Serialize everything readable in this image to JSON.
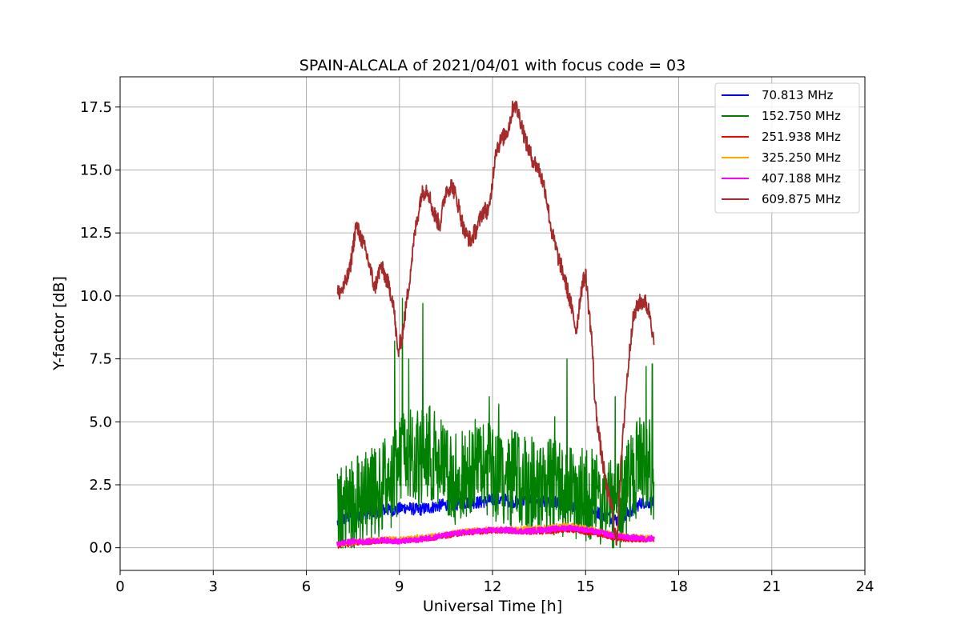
{
  "chart_data": {
    "type": "line",
    "title": "SPAIN-ALCALA of 2021/04/01 with focus code = 03",
    "xlabel": "Universal Time [h]",
    "ylabel": "Y-factor [dB]",
    "xlim": [
      0,
      24
    ],
    "ylim": [
      -0.9,
      18.7
    ],
    "xticks": [
      0,
      3,
      6,
      9,
      12,
      15,
      18,
      21,
      24
    ],
    "xtick_labels": [
      "0",
      "3",
      "6",
      "9",
      "12",
      "15",
      "18",
      "21",
      "24"
    ],
    "yticks": [
      0,
      2.5,
      5,
      7.5,
      10,
      12.5,
      15,
      17.5
    ],
    "ytick_labels": [
      "0.0",
      "2.5",
      "5.0",
      "7.5",
      "10.0",
      "12.5",
      "15.0",
      "17.5"
    ],
    "grid": true,
    "legend_position": "top-right",
    "series": [
      {
        "name": " 70.813 MHz",
        "color": "#0000ff",
        "x": [
          7.0,
          7.3,
          7.6,
          8.0,
          8.4,
          8.8,
          9.2,
          9.6,
          10.0,
          10.4,
          10.8,
          11.2,
          11.6,
          12.0,
          12.4,
          12.8,
          13.2,
          13.6,
          14.0,
          14.4,
          14.8,
          15.2,
          15.6,
          16.0,
          16.4,
          16.8,
          17.2
        ],
        "y": [
          1.0,
          1.2,
          1.3,
          1.4,
          1.5,
          1.5,
          1.6,
          1.5,
          1.6,
          1.7,
          1.7,
          1.8,
          1.8,
          1.9,
          1.9,
          1.8,
          1.9,
          1.8,
          1.8,
          1.7,
          1.6,
          1.5,
          1.3,
          1.1,
          1.4,
          1.8,
          1.8
        ]
      },
      {
        "name": "152.750 MHz",
        "color": "#008000",
        "x": [
          7.0,
          7.3,
          7.6,
          8.0,
          8.4,
          8.8,
          9.2,
          9.6,
          10.0,
          10.4,
          10.8,
          11.2,
          11.6,
          12.0,
          12.4,
          12.8,
          13.2,
          13.6,
          14.0,
          14.4,
          14.8,
          15.2,
          15.6,
          16.0,
          16.4,
          16.8,
          17.2
        ],
        "y": [
          1.2,
          1.5,
          1.8,
          2.0,
          2.3,
          2.8,
          4.0,
          3.5,
          3.8,
          3.2,
          2.8,
          3.0,
          3.3,
          3.0,
          2.8,
          2.7,
          2.5,
          2.6,
          2.4,
          2.3,
          2.2,
          2.0,
          1.8,
          1.5,
          2.5,
          3.5,
          3.0
        ],
        "peaks": [
          [
            7.05,
            2.7
          ],
          [
            8.85,
            8.2
          ],
          [
            9.1,
            9.9
          ],
          [
            9.3,
            7.5
          ],
          [
            9.75,
            9.7
          ],
          [
            11.9,
            6.0
          ],
          [
            12.2,
            5.7
          ],
          [
            14.0,
            5.2
          ],
          [
            14.4,
            7.5
          ],
          [
            15.95,
            6.0
          ],
          [
            16.95,
            7.2
          ],
          [
            17.15,
            7.3
          ]
        ]
      },
      {
        "name": "251.938 MHz",
        "color": "#ff0000",
        "x": [
          7.0,
          7.5,
          8.0,
          8.5,
          9.0,
          9.5,
          10.0,
          10.5,
          11.0,
          11.5,
          12.0,
          12.5,
          13.0,
          13.5,
          14.0,
          14.5,
          15.0,
          15.5,
          16.0,
          16.5,
          17.0,
          17.2
        ],
        "y": [
          0.05,
          0.15,
          0.2,
          0.25,
          0.25,
          0.3,
          0.35,
          0.45,
          0.55,
          0.6,
          0.65,
          0.65,
          0.6,
          0.6,
          0.65,
          0.7,
          0.6,
          0.5,
          0.35,
          0.3,
          0.3,
          0.3
        ]
      },
      {
        "name": "325.250 MHz",
        "color": "#ffa500",
        "x": [
          7.0,
          7.5,
          8.0,
          8.5,
          9.0,
          9.5,
          10.0,
          10.5,
          11.0,
          11.5,
          12.0,
          12.5,
          13.0,
          13.5,
          14.0,
          14.5,
          15.0,
          15.5,
          16.0,
          16.5,
          17.0,
          17.2
        ],
        "y": [
          0.1,
          0.2,
          0.3,
          0.35,
          0.35,
          0.4,
          0.45,
          0.55,
          0.65,
          0.7,
          0.75,
          0.75,
          0.75,
          0.8,
          0.85,
          0.9,
          0.8,
          0.65,
          0.5,
          0.45,
          0.4,
          0.4
        ]
      },
      {
        "name": "407.188 MHz",
        "color": "#ff00ff",
        "x": [
          7.0,
          7.5,
          8.0,
          8.5,
          9.0,
          9.5,
          10.0,
          10.5,
          11.0,
          11.5,
          12.0,
          12.5,
          13.0,
          13.5,
          14.0,
          14.5,
          15.0,
          15.5,
          16.0,
          16.5,
          17.0,
          17.2
        ],
        "y": [
          0.15,
          0.25,
          0.25,
          0.3,
          0.25,
          0.3,
          0.4,
          0.5,
          0.6,
          0.65,
          0.7,
          0.7,
          0.65,
          0.7,
          0.75,
          0.8,
          0.7,
          0.6,
          0.45,
          0.4,
          0.35,
          0.4
        ]
      },
      {
        "name": "609.875 MHz",
        "color": "#a52a2a",
        "x": [
          7.0,
          7.2,
          7.4,
          7.6,
          7.8,
          8.0,
          8.2,
          8.4,
          8.6,
          8.8,
          8.95,
          9.1,
          9.3,
          9.5,
          9.7,
          9.9,
          10.1,
          10.3,
          10.5,
          10.7,
          10.9,
          11.1,
          11.3,
          11.5,
          11.7,
          11.9,
          12.1,
          12.3,
          12.5,
          12.7,
          12.9,
          13.1,
          13.3,
          13.5,
          13.7,
          13.9,
          14.1,
          14.3,
          14.5,
          14.7,
          14.85,
          15.0,
          15.1,
          15.2,
          15.3,
          15.5,
          15.7,
          15.85,
          16.0,
          16.1,
          16.3,
          16.5,
          16.7,
          16.9,
          17.1,
          17.2
        ],
        "y": [
          10.1,
          10.3,
          11.0,
          12.8,
          12.2,
          11.4,
          10.3,
          11.2,
          10.6,
          9.8,
          7.7,
          8.5,
          10.4,
          12.5,
          14.0,
          14.3,
          13.3,
          12.8,
          14.2,
          14.4,
          13.6,
          12.5,
          12.2,
          12.7,
          13.4,
          13.4,
          15.8,
          16.2,
          16.6,
          17.7,
          17.0,
          16.0,
          15.4,
          15.0,
          14.2,
          12.6,
          11.6,
          10.8,
          9.8,
          8.6,
          10.2,
          10.9,
          9.5,
          8.3,
          5.8,
          3.8,
          2.2,
          1.6,
          0.1,
          2.5,
          6.2,
          8.9,
          9.7,
          9.8,
          9.2,
          8.0
        ]
      }
    ]
  }
}
